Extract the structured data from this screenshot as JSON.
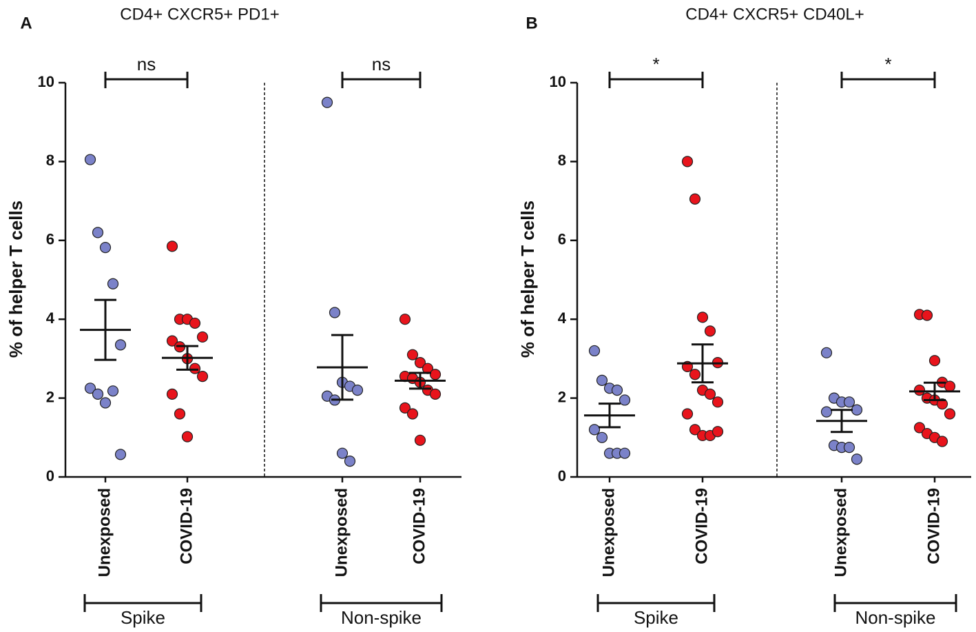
{
  "chart_data": [
    {
      "type": "scatter",
      "panel": "A",
      "title": "CD4+ CXCR5+ PD1+",
      "y_label": "% of helper T cells",
      "ylim": [
        0,
        10
      ],
      "yticks": [
        0,
        2,
        4,
        6,
        8,
        10
      ],
      "groups": [
        {
          "name": "Spike",
          "significance": "ns",
          "series": [
            {
              "name": "Unexposed",
              "color": "#7b82c9",
              "values": [
                8.05,
                6.2,
                5.82,
                4.9,
                3.35,
                2.25,
                2.1,
                1.88,
                2.18,
                0.57
              ],
              "mean": 3.73,
              "sem": 0.76
            },
            {
              "name": "COVID-19",
              "color": "#e8141c",
              "values": [
                5.85,
                4.0,
                4.0,
                3.9,
                3.55,
                3.45,
                3.3,
                3.0,
                2.75,
                2.55,
                2.1,
                1.6,
                1.02
              ],
              "mean": 3.02,
              "sem": 0.3
            }
          ]
        },
        {
          "name": "Non-spike",
          "significance": "ns",
          "series": [
            {
              "name": "Unexposed",
              "color": "#7b82c9",
              "values": [
                9.5,
                4.17,
                2.4,
                2.3,
                2.2,
                2.05,
                1.95,
                0.6,
                0.4
              ],
              "mean": 2.78,
              "sem": 0.82
            },
            {
              "name": "COVID-19",
              "color": "#e8141c",
              "values": [
                4.0,
                3.1,
                2.9,
                2.75,
                2.6,
                2.55,
                2.5,
                2.4,
                2.2,
                2.1,
                1.75,
                1.6,
                0.93
              ],
              "mean": 2.44,
              "sem": 0.2
            }
          ]
        }
      ]
    },
    {
      "type": "scatter",
      "panel": "B",
      "title": "CD4+ CXCR5+ CD40L+",
      "y_label": "% of helper T cells",
      "ylim": [
        0,
        10
      ],
      "yticks": [
        0,
        2,
        4,
        6,
        8,
        10
      ],
      "groups": [
        {
          "name": "Spike",
          "significance": "*",
          "series": [
            {
              "name": "Unexposed",
              "color": "#7b82c9",
              "values": [
                3.2,
                2.45,
                2.25,
                2.2,
                1.95,
                1.2,
                1.0,
                0.6,
                0.6,
                0.6
              ],
              "mean": 1.56,
              "sem": 0.3
            },
            {
              "name": "COVID-19",
              "color": "#e8141c",
              "values": [
                8.0,
                7.05,
                4.05,
                3.7,
                2.9,
                2.8,
                2.6,
                2.2,
                2.1,
                1.9,
                1.6,
                1.2,
                1.05,
                1.05,
                1.15
              ],
              "mean": 2.88,
              "sem": 0.48
            }
          ]
        },
        {
          "name": "Non-spike",
          "significance": "*",
          "series": [
            {
              "name": "Unexposed",
              "color": "#7b82c9",
              "values": [
                3.15,
                2.0,
                1.9,
                1.9,
                1.7,
                1.65,
                0.8,
                0.75,
                0.75,
                0.45
              ],
              "mean": 1.42,
              "sem": 0.28
            },
            {
              "name": "COVID-19",
              "color": "#e8141c",
              "values": [
                4.12,
                4.1,
                2.95,
                2.4,
                2.3,
                2.2,
                2.0,
                1.95,
                1.85,
                1.6,
                1.25,
                1.1,
                1.0,
                0.9
              ],
              "mean": 2.17,
              "sem": 0.22
            }
          ]
        }
      ]
    }
  ]
}
